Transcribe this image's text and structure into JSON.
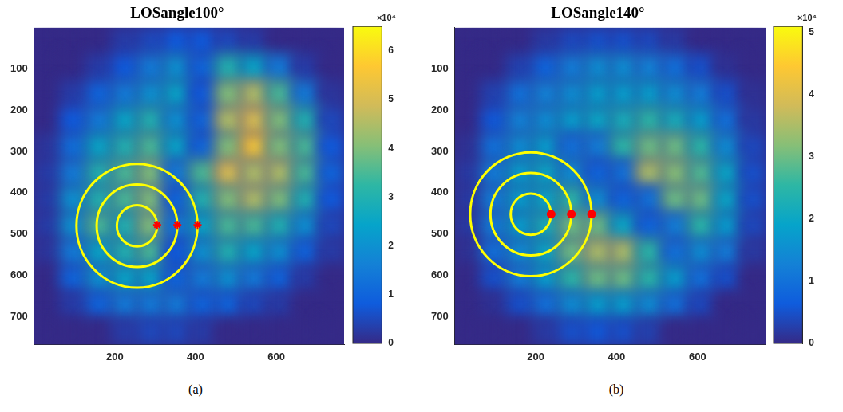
{
  "chart_data": [
    {
      "type": "heatmap",
      "title": "LOSangle100°",
      "subtitle": "(a)",
      "xlim": [
        0,
        768
      ],
      "xticks": [
        200,
        400,
        600
      ],
      "ylim": [
        768,
        0
      ],
      "yticks": [
        100,
        200,
        300,
        400,
        500,
        600,
        700
      ],
      "grid": false,
      "cell_edges": [
        0,
        64,
        128,
        192,
        256,
        320,
        384,
        448,
        512,
        576,
        640,
        704,
        768
      ],
      "cells": [
        [
          0,
          0,
          0,
          0.3,
          0.5,
          0.8,
          0.8,
          0.5,
          0.3,
          0,
          0,
          0
        ],
        [
          0,
          0,
          0.3,
          0.8,
          1.5,
          2,
          1,
          3,
          2.5,
          1.5,
          0.3,
          0
        ],
        [
          0,
          0.3,
          1,
          1.5,
          2,
          2.5,
          0.8,
          4,
          4.5,
          3.5,
          1.5,
          0.2
        ],
        [
          0,
          0.8,
          1.5,
          2.5,
          3,
          2,
          1,
          4.5,
          5,
          4,
          3,
          0.5
        ],
        [
          0.2,
          1.2,
          2.5,
          3,
          3.5,
          2.5,
          1,
          4,
          5.5,
          4,
          3.5,
          0.8
        ],
        [
          0.3,
          1.5,
          3,
          3.5,
          4,
          1.5,
          3.5,
          5,
          4.5,
          4.5,
          3.5,
          1
        ],
        [
          0.3,
          2,
          3,
          3.5,
          4,
          1,
          3,
          4,
          4.5,
          4,
          3,
          0.8
        ],
        [
          0.3,
          2,
          3.5,
          3,
          4,
          1.5,
          2.5,
          3.5,
          3.5,
          3,
          2,
          0.5
        ],
        [
          0.2,
          1.5,
          2.5,
          3,
          3.5,
          0.8,
          2,
          3,
          2.5,
          2,
          1,
          0.3
        ],
        [
          0,
          1,
          2,
          2.5,
          2.5,
          1,
          1.5,
          2,
          1.5,
          1,
          0.3,
          0
        ],
        [
          0,
          0.3,
          1,
          1.5,
          1.5,
          1.5,
          1,
          1,
          0.5,
          0.3,
          0,
          0
        ],
        [
          0,
          0,
          0,
          0.3,
          0.5,
          0.5,
          0.3,
          0,
          0,
          0,
          0,
          0
        ]
      ],
      "colorbar": {
        "range": [
          0,
          6.5
        ],
        "ticks": [
          0,
          1,
          2,
          3,
          4,
          5,
          6
        ],
        "label": "×10⁴"
      },
      "circles": {
        "color": "#ffff00",
        "cx": [
          255,
          255,
          255
        ],
        "cy": [
          480,
          480,
          480
        ],
        "r": [
          50,
          100,
          150
        ]
      },
      "points": {
        "color": "#ff0000",
        "marker": "star",
        "x": [
          305,
          355,
          405
        ],
        "y": [
          478,
          478,
          478
        ]
      }
    },
    {
      "type": "heatmap",
      "title": "LOSangle140°",
      "subtitle": "(b)",
      "xlim": [
        0,
        768
      ],
      "xticks": [
        200,
        400,
        600
      ],
      "ylim": [
        768,
        0
      ],
      "yticks": [
        100,
        200,
        300,
        400,
        500,
        600,
        700
      ],
      "grid": false,
      "cell_edges": [
        0,
        64,
        128,
        192,
        256,
        320,
        384,
        448,
        512,
        576,
        640,
        704,
        768
      ],
      "cells": [
        [
          0,
          0,
          0,
          0.2,
          0.4,
          0.5,
          0.5,
          0.4,
          0.2,
          0,
          0,
          0
        ],
        [
          0,
          0,
          0.3,
          0.8,
          1.2,
          1.5,
          1.5,
          1.3,
          1,
          0.5,
          0.1,
          0
        ],
        [
          0,
          0.3,
          1,
          1.3,
          1.5,
          1.8,
          1.8,
          1.8,
          1.5,
          1.2,
          0.5,
          0.1
        ],
        [
          0,
          0.6,
          1.3,
          1.5,
          1.8,
          2,
          2.2,
          2.5,
          2.2,
          1.8,
          1,
          0.2
        ],
        [
          0.1,
          1,
          1.5,
          1.8,
          1,
          1.2,
          2.5,
          3,
          3,
          2.5,
          1.5,
          0.4
        ],
        [
          0.2,
          1.2,
          1.8,
          2,
          1.5,
          0.8,
          1,
          3.5,
          3.2,
          2.8,
          2,
          0.5
        ],
        [
          0.2,
          1.2,
          1.8,
          2,
          2.5,
          1.5,
          0.8,
          1,
          3,
          3,
          2,
          0.5
        ],
        [
          0.2,
          1.2,
          1.8,
          2.2,
          3,
          3,
          2,
          0.8,
          1.2,
          2.5,
          1.8,
          0.4
        ],
        [
          0.1,
          1,
          1.5,
          2,
          3,
          3.5,
          3.5,
          2.5,
          1,
          1.5,
          1.2,
          0.2
        ],
        [
          0,
          0.5,
          1.2,
          1.8,
          2.5,
          3,
          3,
          2.5,
          1.8,
          1,
          0.5,
          0
        ],
        [
          0,
          0.1,
          0.5,
          1,
          1.5,
          1.8,
          1.8,
          1.5,
          1,
          0.4,
          0,
          0
        ],
        [
          0,
          0,
          0,
          0.2,
          0.5,
          0.6,
          0.5,
          0.3,
          0,
          0,
          0,
          0
        ]
      ],
      "colorbar": {
        "range": [
          0,
          5.1
        ],
        "ticks": [
          0,
          1,
          2,
          3,
          4,
          5
        ],
        "label": "×10⁴"
      },
      "circles": {
        "color": "#ffff00",
        "cx": [
          188,
          188,
          188
        ],
        "cy": [
          452,
          452,
          452
        ],
        "r": [
          50,
          100,
          150
        ]
      },
      "points": {
        "color": "#ff0000",
        "marker": "circle",
        "x": [
          238,
          288,
          338
        ],
        "y": [
          452,
          452,
          452
        ]
      }
    }
  ]
}
